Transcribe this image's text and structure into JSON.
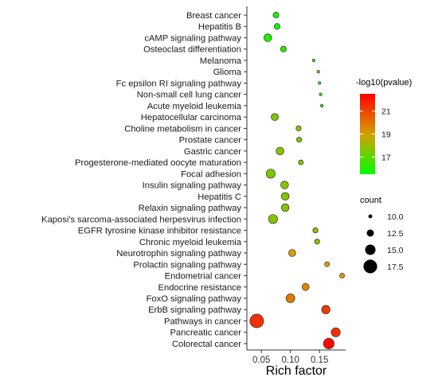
{
  "chart_data": {
    "type": "scatter",
    "xlabel": "Rich factor",
    "ylabel": "",
    "x_ticks": [
      "0.05",
      "0.10",
      "0.15"
    ],
    "x_tick_values": [
      0.05,
      0.1,
      0.15
    ],
    "xlim": [
      0.025,
      0.195
    ],
    "grid": false,
    "color_legend": {
      "title": "-log10(pvalue)",
      "ticks": [
        "21",
        "19",
        "17"
      ],
      "tick_values": [
        21,
        19,
        17
      ],
      "range": [
        15.5,
        22.5
      ],
      "colors": [
        "#00ff00",
        "#ff0000"
      ]
    },
    "size_legend": {
      "title": "count",
      "labels": [
        "10.0",
        "12.5",
        "15.0",
        "17.5"
      ],
      "values": [
        10.0,
        12.5,
        15.0,
        17.5
      ]
    },
    "categories": [
      "Breast cancer",
      "Hepatitis B",
      "cAMP signaling pathway",
      "Osteoclast differentiation",
      "Melanoma",
      "Glioma",
      "Fc epsilon RI signaling pathway",
      "Non-small cell lung cancer",
      "Acute myeloid leukemia",
      "Hepatocellular carcinoma",
      "Choline metabolism in cancer",
      "Prostate cancer",
      "Gastric cancer",
      "Progesterone-mediated oocyte maturation",
      "Focal adhesion",
      "Insulin signaling pathway",
      "Hepatitis C",
      "Relaxin signaling pathway",
      "Kaposi's sarcoma-associated herpesvirus infection",
      "EGFR tyrosine kinase inhibitor resistance",
      "Chronic myeloid leukemia",
      "Neurotrophin signaling pathway",
      "Prolactin signaling pathway",
      "Endometrial cancer",
      "Endocrine resistance",
      "FoxO signaling pathway",
      "ErbB signaling pathway",
      "Pathways in cancer",
      "Pancreatic cancer",
      "Colorectal cancer"
    ],
    "points": [
      {
        "x": 0.075,
        "count": 11.5,
        "pvalue": 15.9
      },
      {
        "x": 0.077,
        "count": 11.5,
        "pvalue": 15.9
      },
      {
        "x": 0.061,
        "count": 13.0,
        "pvalue": 16.0
      },
      {
        "x": 0.088,
        "count": 11.5,
        "pvalue": 16.3
      },
      {
        "x": 0.14,
        "count": 9.2,
        "pvalue": 16.3
      },
      {
        "x": 0.148,
        "count": 9.2,
        "pvalue": 16.3
      },
      {
        "x": 0.15,
        "count": 9.2,
        "pvalue": 16.3
      },
      {
        "x": 0.152,
        "count": 9.2,
        "pvalue": 16.3
      },
      {
        "x": 0.154,
        "count": 9.2,
        "pvalue": 16.3
      },
      {
        "x": 0.073,
        "count": 12.5,
        "pvalue": 17.5
      },
      {
        "x": 0.114,
        "count": 11.0,
        "pvalue": 17.6
      },
      {
        "x": 0.115,
        "count": 11.0,
        "pvalue": 17.6
      },
      {
        "x": 0.082,
        "count": 13.0,
        "pvalue": 17.7
      },
      {
        "x": 0.118,
        "count": 10.8,
        "pvalue": 17.6
      },
      {
        "x": 0.066,
        "count": 14.0,
        "pvalue": 17.6
      },
      {
        "x": 0.09,
        "count": 13.0,
        "pvalue": 17.7
      },
      {
        "x": 0.091,
        "count": 13.0,
        "pvalue": 17.7
      },
      {
        "x": 0.091,
        "count": 13.0,
        "pvalue": 17.7
      },
      {
        "x": 0.07,
        "count": 14.0,
        "pvalue": 17.7
      },
      {
        "x": 0.143,
        "count": 11.0,
        "pvalue": 17.8
      },
      {
        "x": 0.146,
        "count": 11.0,
        "pvalue": 17.8
      },
      {
        "x": 0.103,
        "count": 12.5,
        "pvalue": 19.0
      },
      {
        "x": 0.163,
        "count": 10.8,
        "pvalue": 19.0
      },
      {
        "x": 0.189,
        "count": 10.8,
        "pvalue": 19.3
      },
      {
        "x": 0.126,
        "count": 12.5,
        "pvalue": 19.5
      },
      {
        "x": 0.1,
        "count": 13.8,
        "pvalue": 19.8
      },
      {
        "x": 0.161,
        "count": 13.5,
        "pvalue": 21.2
      },
      {
        "x": 0.042,
        "count": 17.5,
        "pvalue": 21.4
      },
      {
        "x": 0.178,
        "count": 14.0,
        "pvalue": 21.4
      },
      {
        "x": 0.166,
        "count": 15.2,
        "pvalue": 22.3
      }
    ]
  }
}
